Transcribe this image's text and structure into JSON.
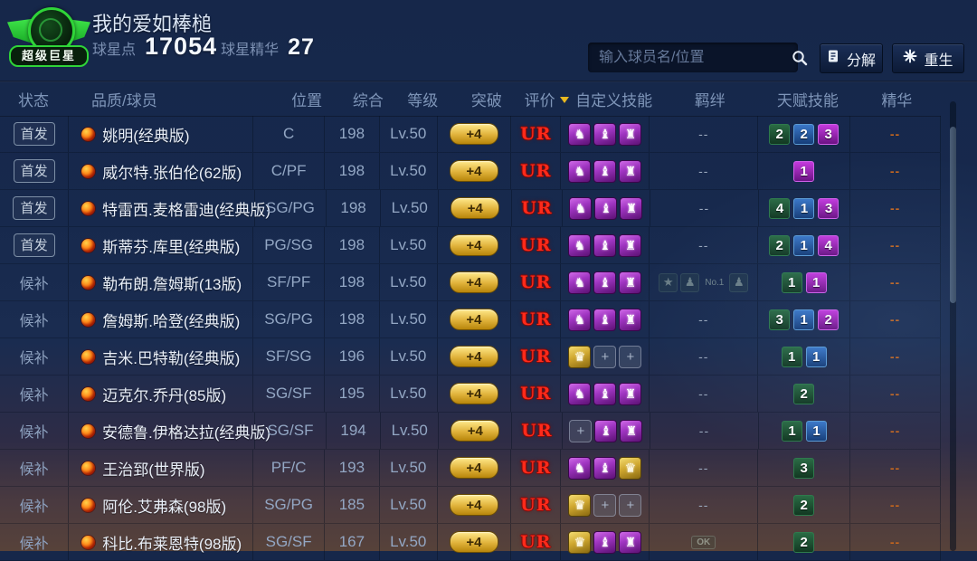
{
  "header": {
    "logo_text": "超级巨星",
    "team_name": "我的爱如棒槌",
    "star_points_label": "球星点",
    "star_points_value": "17054",
    "star_essence_label": "球星精华",
    "star_essence_value": "27"
  },
  "toolbar": {
    "search_placeholder": "输入球员名/位置",
    "decompose_label": "分解",
    "rebirth_label": "重生"
  },
  "colors": {
    "rating_red": "#ff2a1a",
    "pill_gold": "#e0b23a",
    "talent_green": "#1c5a36",
    "talent_blue": "#2a5fa8",
    "talent_magenta": "#9a22b8",
    "essence_dash_orange": "#c2651f"
  },
  "table": {
    "columns": [
      "状态",
      "品质/球员",
      "位置",
      "综合",
      "等级",
      "突破",
      "评价",
      "自定义技能",
      "羁绊",
      "天赋技能",
      "精华"
    ],
    "rows": [
      {
        "status": "首发",
        "status_type": "starter",
        "name": "姚明(经典版)",
        "position": "C",
        "overall": "198",
        "level": "Lv.50",
        "breakthrough": "+4",
        "rating": "UR",
        "skills": [
          "purple",
          "purple",
          "purple"
        ],
        "bond": "--",
        "talents": [
          {
            "color": "green",
            "value": "2"
          },
          {
            "color": "blue",
            "value": "2"
          },
          {
            "color": "magenta",
            "value": "3"
          }
        ],
        "essence": "--"
      },
      {
        "status": "首发",
        "status_type": "starter",
        "name": "威尔特.张伯伦(62版)",
        "position": "C/PF",
        "overall": "198",
        "level": "Lv.50",
        "breakthrough": "+4",
        "rating": "UR",
        "skills": [
          "purple",
          "purple",
          "purple"
        ],
        "bond": "--",
        "talents": [
          {
            "color": "magenta",
            "value": "1"
          }
        ],
        "essence": "--"
      },
      {
        "status": "首发",
        "status_type": "starter",
        "name": "特雷西.麦格雷迪(经典版)",
        "position": "SG/PG",
        "overall": "198",
        "level": "Lv.50",
        "breakthrough": "+4",
        "rating": "UR",
        "skills": [
          "purple",
          "purple",
          "purple"
        ],
        "bond": "--",
        "talents": [
          {
            "color": "green",
            "value": "4"
          },
          {
            "color": "blue",
            "value": "1"
          },
          {
            "color": "magenta",
            "value": "3"
          }
        ],
        "essence": "--"
      },
      {
        "status": "首发",
        "status_type": "starter",
        "name": "斯蒂芬.库里(经典版)",
        "position": "PG/SG",
        "overall": "198",
        "level": "Lv.50",
        "breakthrough": "+4",
        "rating": "UR",
        "skills": [
          "purple",
          "purple",
          "purple"
        ],
        "bond": "--",
        "talents": [
          {
            "color": "green",
            "value": "2"
          },
          {
            "color": "blue",
            "value": "1"
          },
          {
            "color": "magenta",
            "value": "4"
          }
        ],
        "essence": "--"
      },
      {
        "status": "候补",
        "status_type": "bench",
        "name": "勒布朗.詹姆斯(13版)",
        "position": "SF/PF",
        "overall": "198",
        "level": "Lv.50",
        "breakthrough": "+4",
        "rating": "UR",
        "skills": [
          "purple",
          "purple",
          "purple"
        ],
        "bond": {
          "type": "icons",
          "icons": [
            "medal",
            "player",
            "No.1",
            "player"
          ]
        },
        "talents": [
          {
            "color": "green",
            "value": "1"
          },
          {
            "color": "magenta",
            "value": "1"
          }
        ],
        "essence": "--"
      },
      {
        "status": "候补",
        "status_type": "bench",
        "name": "詹姆斯.哈登(经典版)",
        "position": "SG/PG",
        "overall": "198",
        "level": "Lv.50",
        "breakthrough": "+4",
        "rating": "UR",
        "skills": [
          "purple",
          "purple",
          "purple"
        ],
        "bond": "--",
        "talents": [
          {
            "color": "green",
            "value": "3"
          },
          {
            "color": "blue",
            "value": "1"
          },
          {
            "color": "magenta",
            "value": "2"
          }
        ],
        "essence": "--"
      },
      {
        "status": "候补",
        "status_type": "bench",
        "name": "吉米.巴特勒(经典版)",
        "position": "SF/SG",
        "overall": "196",
        "level": "Lv.50",
        "breakthrough": "+4",
        "rating": "UR",
        "skills": [
          "gold",
          "empty",
          "empty"
        ],
        "bond": "--",
        "talents": [
          {
            "color": "green",
            "value": "1"
          },
          {
            "color": "blue",
            "value": "1"
          }
        ],
        "essence": "--"
      },
      {
        "status": "候补",
        "status_type": "bench",
        "name": "迈克尔.乔丹(85版)",
        "position": "SG/SF",
        "overall": "195",
        "level": "Lv.50",
        "breakthrough": "+4",
        "rating": "UR",
        "skills": [
          "purple",
          "purple",
          "purple"
        ],
        "bond": "--",
        "talents": [
          {
            "color": "green",
            "value": "2"
          }
        ],
        "essence": "--"
      },
      {
        "status": "候补",
        "status_type": "bench",
        "name": "安德鲁.伊格达拉(经典版)",
        "position": "SG/SF",
        "overall": "194",
        "level": "Lv.50",
        "breakthrough": "+4",
        "rating": "UR",
        "skills": [
          "empty",
          "purple",
          "purple"
        ],
        "bond": "--",
        "talents": [
          {
            "color": "green",
            "value": "1"
          },
          {
            "color": "blue",
            "value": "1"
          }
        ],
        "essence": "--"
      },
      {
        "status": "候补",
        "status_type": "bench",
        "name": "王治郅(世界版)",
        "position": "PF/C",
        "overall": "193",
        "level": "Lv.50",
        "breakthrough": "+4",
        "rating": "UR",
        "skills": [
          "purple",
          "purple",
          "gold"
        ],
        "bond": "--",
        "talents": [
          {
            "color": "green",
            "value": "3"
          }
        ],
        "essence": "--"
      },
      {
        "status": "候补",
        "status_type": "bench",
        "name": "阿伦.艾弗森(98版)",
        "position": "SG/PG",
        "overall": "185",
        "level": "Lv.50",
        "breakthrough": "+4",
        "rating": "UR",
        "skills": [
          "gold",
          "empty",
          "empty"
        ],
        "bond": "--",
        "talents": [
          {
            "color": "green",
            "value": "2"
          }
        ],
        "essence": "--"
      },
      {
        "status": "候补",
        "status_type": "bench",
        "name": "科比.布莱恩特(98版)",
        "position": "SG/SF",
        "overall": "167",
        "level": "Lv.50",
        "breakthrough": "+4",
        "rating": "UR",
        "skills": [
          "gold",
          "purple",
          "purple"
        ],
        "bond": {
          "type": "ok",
          "label": "OK"
        },
        "talents": [
          {
            "color": "green",
            "value": "2"
          }
        ],
        "essence": "--"
      }
    ]
  }
}
